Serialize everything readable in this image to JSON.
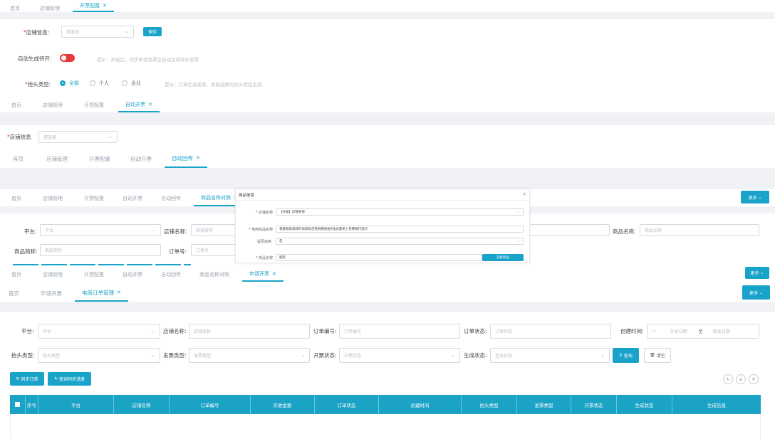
{
  "layer1": {
    "tabs": [
      {
        "label": "首页"
      },
      {
        "label": "店铺管理"
      },
      {
        "label": "开票配置",
        "active": true
      }
    ],
    "shop_label": "店铺信息:",
    "shop_placeholder": "请选择",
    "save": "保存",
    "auto_label": "自动生成待开:",
    "auto_hint": "提示：开启后，同步申请发票会自动生成待开发票",
    "title_type_label": "抬头类型:",
    "radio": [
      "全部",
      "个人",
      "企业"
    ],
    "title_hint": "提示：订单生成发票，根据选择的抬头类型生成"
  },
  "layer2": {
    "tabs": [
      {
        "label": "首页"
      },
      {
        "label": "店铺管理"
      },
      {
        "label": "开票配置"
      },
      {
        "label": "自动开票",
        "active": true
      }
    ],
    "shop_label": "店铺信息",
    "shop_placeholder": "请选择"
  },
  "layer3": {
    "tabs": [
      {
        "label": "首页"
      },
      {
        "label": "店铺管理"
      },
      {
        "label": "开票配置"
      },
      {
        "label": "自动开票"
      },
      {
        "label": "自动回传",
        "active": true
      }
    ]
  },
  "layer4": {
    "tabs": [
      {
        "label": "首页"
      },
      {
        "label": "店铺管理"
      },
      {
        "label": "开票配置"
      },
      {
        "label": "自动开票"
      },
      {
        "label": "自动回传"
      },
      {
        "label": "商品名称对照",
        "active": true
      }
    ],
    "more": "更多",
    "platform_label": "平台:",
    "platform_ph": "平台",
    "shop_label": "店铺名称:",
    "shop_ph": "店铺名称",
    "goods_label": "商品名称:",
    "goods_ph": "商品名称",
    "abbr_label": "商品简称:",
    "abbr_ph": "商品简称",
    "order_label": "订单号:",
    "order_ph": "订单号"
  },
  "modal": {
    "title": "商品信息",
    "close": "×",
    "rows": [
      {
        "label": "* 店铺名称",
        "value": "【天猫】店铺名称"
      },
      {
        "label": "* 电商商品名称",
        "value": "春夏新款潮流时尚宽松百搭纯棉短袖T恤女夏季上衣韩版打底衫"
      },
      {
        "label": "是否启用",
        "value": "是"
      },
      {
        "label": "* 商品名称",
        "value": "服装"
      }
    ],
    "btn": "选择商品"
  },
  "layer5": {
    "tabs": [
      {
        "label": "首页"
      },
      {
        "label": "店铺管理"
      },
      {
        "label": "开票配置"
      },
      {
        "label": "自动开票"
      },
      {
        "label": "自动回传"
      },
      {
        "label": "商品名称对照"
      },
      {
        "label": "申请开票",
        "active": true
      }
    ],
    "more": "更多"
  },
  "main": {
    "tabs": [
      {
        "label": "首页"
      },
      {
        "label": "申请开票"
      },
      {
        "label": "电商订单管理",
        "active": true
      }
    ],
    "more": "更多",
    "filters": {
      "platform": {
        "label": "平台:",
        "ph": "平台"
      },
      "shop": {
        "label": "店铺名称:",
        "ph": "店铺名称"
      },
      "order_no": {
        "label": "订单编号:",
        "ph": "订单编号"
      },
      "order_status": {
        "label": "订单状态:",
        "ph": "订单状态"
      },
      "created": {
        "label": "创建时间:",
        "start": "开始日期",
        "sep": "至",
        "end": "结束日期"
      },
      "title_type": {
        "label": "抬头类型:",
        "ph": "抬头类型"
      },
      "invoice_type": {
        "label": "发票类型:",
        "ph": "发票类型"
      },
      "invoice_status": {
        "label": "开票状态:",
        "ph": "开票状态"
      },
      "gen_status": {
        "label": "生成状态:",
        "ph": "生成状态"
      }
    },
    "search": "查询",
    "reset": "清空",
    "sync": "同步订单",
    "query_sync": "查询同步进度",
    "columns": [
      "序号",
      "平台",
      "店铺名称",
      "订单编号",
      "实收金额",
      "订单状态",
      "创建时间",
      "抬头类型",
      "发票类型",
      "开票状态",
      "生成状态",
      "生成信息"
    ]
  },
  "colors": {
    "accent": "#1aa3c9",
    "toggle_off": "#e53935"
  }
}
